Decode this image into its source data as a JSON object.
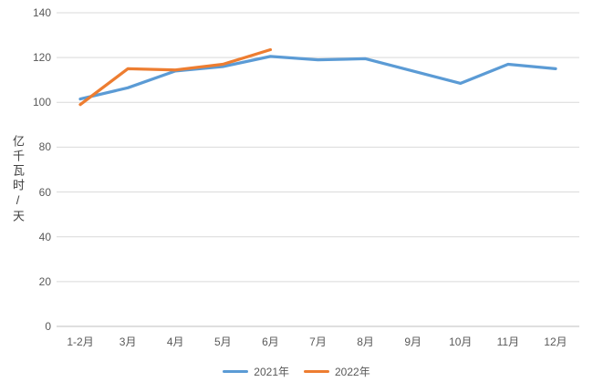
{
  "chart_data": {
    "type": "line",
    "title": "",
    "xlabel": "",
    "ylabel": "亿千瓦时/天",
    "categories": [
      "1-2月",
      "3月",
      "4月",
      "5月",
      "6月",
      "7月",
      "8月",
      "9月",
      "10月",
      "11月",
      "12月"
    ],
    "series": [
      {
        "name": "2021年",
        "color": "#5B9BD5",
        "values": [
          101.5,
          106.5,
          114,
          116,
          120.5,
          119,
          119.5,
          114,
          108.5,
          117,
          115
        ]
      },
      {
        "name": "2022年",
        "color": "#ED7D31",
        "values": [
          99,
          115,
          114.5,
          117,
          123.5,
          null,
          null,
          null,
          null,
          null,
          null
        ]
      }
    ],
    "ylim": [
      0,
      140
    ],
    "ytick_step": 20,
    "yticks": [
      0,
      20,
      40,
      60,
      80,
      100,
      120,
      140
    ],
    "grid": "horizontal",
    "legend_position": "bottom"
  },
  "colors": {
    "grid_line": "#D9D9D9",
    "axis_line": "#BFBFBF",
    "tick_text": "#595959",
    "axis_title_text": "#404040",
    "background": "#FFFFFF"
  }
}
